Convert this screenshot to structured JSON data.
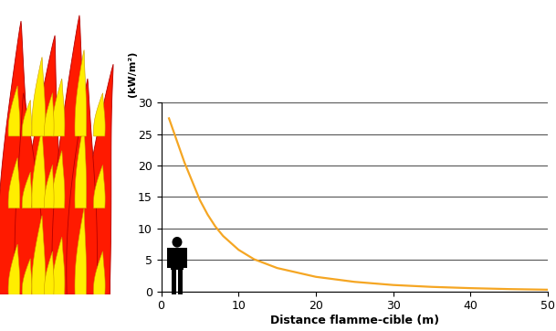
{
  "chart_data": {
    "type": "line",
    "x_label": "Distance flamme-cible (m)",
    "y_label": "(kW/m²)",
    "x": [
      1,
      2,
      3,
      4,
      5,
      6,
      7,
      8,
      10,
      12,
      15,
      20,
      25,
      30,
      35,
      40,
      45,
      50
    ],
    "values": [
      27.5,
      24,
      20.5,
      17.5,
      14.5,
      12.2,
      10.3,
      8.8,
      6.6,
      5.1,
      3.7,
      2.3,
      1.5,
      1.0,
      0.7,
      0.5,
      0.35,
      0.25
    ],
    "color": "#f5a623",
    "xlim": [
      0,
      50
    ],
    "xticks": [
      0,
      10,
      20,
      30,
      40,
      50
    ],
    "ylim": [
      0,
      30
    ],
    "yticks": [
      0,
      5,
      10,
      15,
      20,
      25,
      30
    ],
    "grid": true
  }
}
